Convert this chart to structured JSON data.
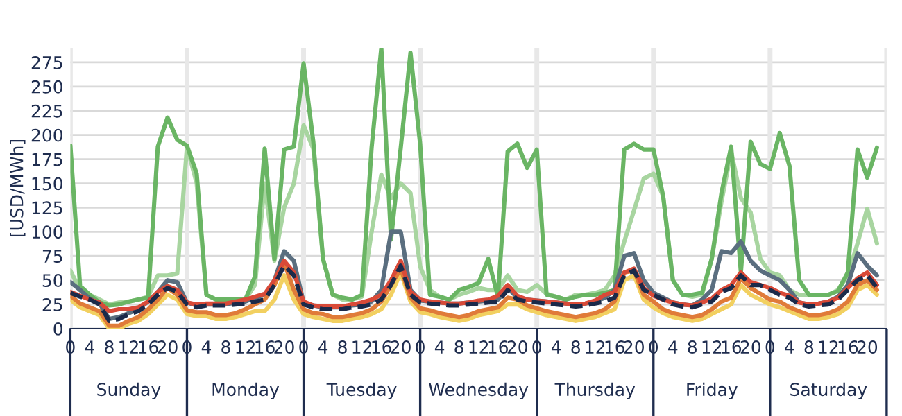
{
  "chart_data": {
    "type": "line",
    "ylabel": "[USD/MWh]",
    "categories": [
      "0",
      null,
      "4",
      null,
      "8",
      null,
      "12",
      null,
      "16",
      null,
      "20",
      null,
      "0",
      null,
      "4",
      null,
      "8",
      null,
      "12",
      null,
      "16",
      null,
      "20",
      null,
      "0",
      null,
      "4",
      null,
      "8",
      null,
      "12",
      null,
      "16",
      null,
      "20",
      null,
      "0",
      null,
      "4",
      null,
      "8",
      null,
      "12",
      null,
      "16",
      null,
      "20",
      null,
      "0",
      null,
      "4",
      null,
      "8",
      null,
      "12",
      null,
      "16",
      null,
      "20",
      null,
      "0",
      null,
      "4",
      null,
      "8",
      null,
      "12",
      null,
      "16",
      null,
      "20",
      null,
      "0",
      null,
      "4",
      null,
      "8",
      null,
      "12",
      null,
      "16",
      null,
      "20",
      null
    ],
    "annotations": [
      "Sunday",
      "Monday",
      "Tuesday",
      "Wednesday",
      "Thursday",
      "Friday",
      "Saturday"
    ],
    "ylim": [
      0,
      290
    ],
    "yticks": [
      0,
      25,
      50,
      75,
      100,
      125,
      150,
      175,
      200,
      225,
      250,
      275
    ],
    "grid": "y",
    "line_style": "solid",
    "marker": "none",
    "series": [
      {
        "color": "#a8d5a0",
        "values": [
          60,
          40,
          35,
          30,
          25,
          27,
          28,
          30,
          33,
          55,
          55,
          57,
          188,
          150,
          35,
          30,
          30,
          30,
          30,
          45,
          150,
          70,
          125,
          150,
          210,
          186,
          72,
          35,
          30,
          30,
          33,
          100,
          159,
          135,
          150,
          140,
          64,
          40,
          33,
          30,
          35,
          38,
          42,
          40,
          40,
          55,
          40,
          38,
          45,
          36,
          33,
          30,
          35,
          35,
          37,
          40,
          55,
          90,
          122,
          155,
          160,
          137,
          50,
          35,
          33,
          35,
          72,
          131,
          183,
          135,
          120,
          72,
          58,
          55,
          40,
          35,
          35,
          35,
          35,
          40,
          55,
          88,
          124,
          88
        ]
      },
      {
        "color": "#6ab564",
        "values": [
          189,
          44,
          35,
          27,
          24,
          25,
          28,
          30,
          32,
          188,
          218,
          195,
          189,
          160,
          35,
          30,
          30,
          30,
          30,
          54,
          186,
          72,
          185,
          188,
          274,
          193,
          72,
          35,
          32,
          30,
          35,
          187,
          290,
          92,
          187,
          285,
          190,
          35,
          33,
          30,
          40,
          43,
          47,
          72,
          33,
          183,
          191,
          166,
          185,
          35,
          33,
          30,
          33,
          35,
          35,
          37,
          40,
          185,
          191,
          185,
          185,
          137,
          50,
          35,
          35,
          37,
          72,
          140,
          188,
          58,
          193,
          170,
          165,
          202,
          168,
          50,
          35,
          35,
          35,
          39,
          58,
          185,
          156,
          187
        ]
      },
      {
        "color": "#5a6e7f",
        "values": [
          48,
          40,
          31,
          26,
          10,
          12,
          16,
          20,
          28,
          38,
          50,
          48,
          27,
          24,
          25,
          25,
          25,
          27,
          28,
          32,
          35,
          50,
          80,
          70,
          27,
          24,
          22,
          22,
          22,
          24,
          25,
          28,
          40,
          100,
          100,
          40,
          29,
          28,
          27,
          26,
          26,
          27,
          28,
          29,
          30,
          42,
          32,
          30,
          29,
          28,
          27,
          26,
          25,
          26,
          28,
          32,
          40,
          75,
          78,
          50,
          37,
          32,
          27,
          25,
          24,
          30,
          40,
          80,
          78,
          90,
          70,
          60,
          55,
          50,
          40,
          27,
          25,
          26,
          28,
          33,
          45,
          78,
          65,
          55
        ]
      },
      {
        "color": "#f2d060",
        "values": [
          30,
          22,
          18,
          14,
          0,
          0,
          5,
          8,
          15,
          25,
          35,
          30,
          15,
          13,
          13,
          10,
          10,
          12,
          15,
          18,
          18,
          30,
          55,
          30,
          15,
          12,
          10,
          8,
          8,
          10,
          12,
          15,
          20,
          35,
          58,
          28,
          17,
          15,
          12,
          10,
          8,
          10,
          14,
          16,
          18,
          25,
          25,
          20,
          17,
          14,
          12,
          10,
          8,
          10,
          12,
          16,
          20,
          50,
          55,
          30,
          22,
          16,
          12,
          10,
          8,
          10,
          15,
          20,
          25,
          45,
          35,
          30,
          25,
          22,
          18,
          14,
          10,
          10,
          12,
          15,
          22,
          40,
          45,
          35
        ]
      },
      {
        "color": "#e07b39",
        "values": [
          34,
          26,
          22,
          18,
          3,
          3,
          8,
          12,
          20,
          30,
          42,
          35,
          19,
          17,
          17,
          14,
          14,
          16,
          20,
          25,
          30,
          45,
          68,
          40,
          20,
          16,
          15,
          12,
          12,
          14,
          16,
          20,
          28,
          45,
          62,
          32,
          21,
          19,
          16,
          14,
          12,
          14,
          18,
          20,
          22,
          32,
          30,
          24,
          21,
          18,
          16,
          14,
          12,
          14,
          16,
          20,
          28,
          58,
          60,
          35,
          28,
          20,
          16,
          14,
          12,
          14,
          20,
          28,
          32,
          52,
          42,
          36,
          30,
          28,
          22,
          18,
          14,
          14,
          16,
          20,
          28,
          45,
          50,
          40
        ]
      },
      {
        "color": "#d94a38",
        "values": [
          38,
          34,
          30,
          27,
          18,
          20,
          20,
          22,
          28,
          38,
          44,
          40,
          27,
          25,
          26,
          26,
          26,
          28,
          30,
          33,
          36,
          50,
          70,
          58,
          28,
          24,
          23,
          23,
          23,
          25,
          27,
          30,
          35,
          50,
          70,
          38,
          30,
          28,
          27,
          26,
          26,
          27,
          29,
          30,
          34,
          45,
          34,
          30,
          29,
          28,
          27,
          26,
          25,
          26,
          29,
          35,
          38,
          58,
          62,
          42,
          34,
          30,
          27,
          25,
          24,
          27,
          31,
          40,
          45,
          58,
          48,
          45,
          42,
          37,
          34,
          27,
          25,
          26,
          28,
          32,
          42,
          52,
          58,
          45
        ]
      },
      {
        "color": "#1b2a4a",
        "line_style": "dashed",
        "values": [
          37,
          33,
          30,
          25,
          8,
          10,
          15,
          18,
          25,
          35,
          42,
          38,
          25,
          22,
          24,
          24,
          24,
          25,
          26,
          28,
          30,
          45,
          65,
          55,
          25,
          22,
          20,
          20,
          20,
          22,
          23,
          25,
          30,
          45,
          65,
          35,
          27,
          26,
          25,
          24,
          24,
          25,
          26,
          27,
          28,
          40,
          30,
          28,
          27,
          26,
          25,
          24,
          23,
          24,
          26,
          28,
          32,
          55,
          60,
          40,
          35,
          30,
          25,
          23,
          22,
          25,
          28,
          38,
          42,
          55,
          45,
          45,
          40,
          35,
          32,
          25,
          23,
          24,
          25,
          30,
          40,
          50,
          55,
          42
        ]
      }
    ]
  }
}
